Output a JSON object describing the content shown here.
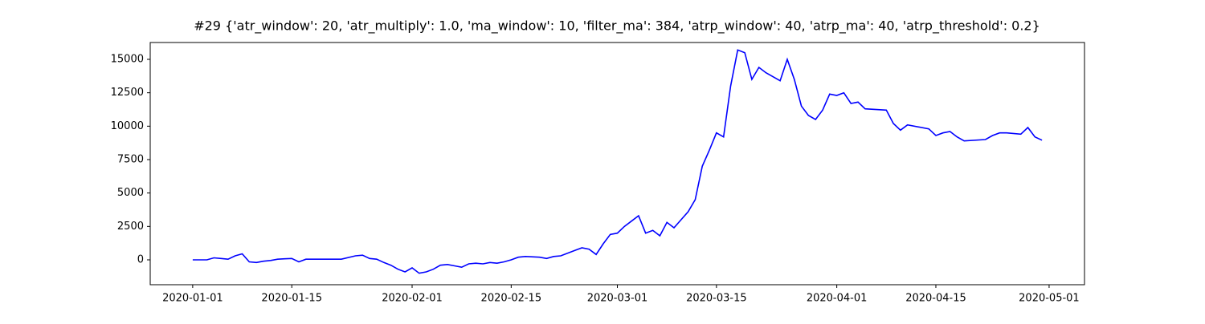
{
  "chart_data": {
    "type": "line",
    "title": "#29 {'atr_window': 20, 'atr_multiply': 1.0, 'ma_window': 10, 'filter_ma': 384, 'atrp_window': 40, 'atrp_ma': 40, 'atrp_threshold': 0.2}",
    "x": [
      "2020-01-01",
      "2020-01-03",
      "2020-01-04",
      "2020-01-05",
      "2020-01-06",
      "2020-01-07",
      "2020-01-08",
      "2020-01-09",
      "2020-01-10",
      "2020-01-11",
      "2020-01-12",
      "2020-01-13",
      "2020-01-14",
      "2020-01-15",
      "2020-01-16",
      "2020-01-17",
      "2020-01-20",
      "2020-01-22",
      "2020-01-24",
      "2020-01-25",
      "2020-01-26",
      "2020-01-27",
      "2020-01-28",
      "2020-01-29",
      "2020-01-30",
      "2020-01-31",
      "2020-02-01",
      "2020-02-02",
      "2020-02-03",
      "2020-02-04",
      "2020-02-05",
      "2020-02-06",
      "2020-02-07",
      "2020-02-08",
      "2020-02-09",
      "2020-02-10",
      "2020-02-11",
      "2020-02-12",
      "2020-02-13",
      "2020-02-14",
      "2020-02-15",
      "2020-02-16",
      "2020-02-17",
      "2020-02-19",
      "2020-02-20",
      "2020-02-21",
      "2020-02-22",
      "2020-02-24",
      "2020-02-25",
      "2020-02-26",
      "2020-02-27",
      "2020-02-28",
      "2020-02-29",
      "2020-03-01",
      "2020-03-02",
      "2020-03-03",
      "2020-03-04",
      "2020-03-05",
      "2020-03-06",
      "2020-03-07",
      "2020-03-08",
      "2020-03-09",
      "2020-03-10",
      "2020-03-11",
      "2020-03-12",
      "2020-03-13",
      "2020-03-14",
      "2020-03-15",
      "2020-03-16",
      "2020-03-17",
      "2020-03-18",
      "2020-03-19",
      "2020-03-20",
      "2020-03-21",
      "2020-03-22",
      "2020-03-23",
      "2020-03-24",
      "2020-03-25",
      "2020-03-26",
      "2020-03-27",
      "2020-03-28",
      "2020-03-29",
      "2020-03-30",
      "2020-03-31",
      "2020-04-01",
      "2020-04-02",
      "2020-04-03",
      "2020-04-04",
      "2020-04-05",
      "2020-04-08",
      "2020-04-09",
      "2020-04-10",
      "2020-04-11",
      "2020-04-14",
      "2020-04-15",
      "2020-04-16",
      "2020-04-17",
      "2020-04-18",
      "2020-04-19",
      "2020-04-22",
      "2020-04-23",
      "2020-04-24",
      "2020-04-25",
      "2020-04-27",
      "2020-04-28",
      "2020-04-29",
      "2020-04-30"
    ],
    "series": [
      {
        "color": "#0000ff",
        "values": [
          0,
          0,
          150,
          100,
          50,
          300,
          450,
          -150,
          -200,
          -100,
          -50,
          50,
          80,
          100,
          -150,
          50,
          50,
          50,
          300,
          350,
          100,
          50,
          -200,
          -400,
          -700,
          -900,
          -600,
          -1000,
          -900,
          -700,
          -400,
          -350,
          -450,
          -550,
          -300,
          -250,
          -300,
          -200,
          -250,
          -150,
          0,
          200,
          250,
          200,
          100,
          250,
          300,
          700,
          900,
          800,
          400,
          1200,
          1900,
          2000,
          2500,
          2900,
          3300,
          2000,
          2200,
          1800,
          2800,
          2400,
          3000,
          3600,
          4500,
          7000,
          8200,
          9500,
          9200,
          13000,
          15700,
          15500,
          13500,
          14400,
          14000,
          13700,
          13400,
          15000,
          13500,
          11500,
          10800,
          10500,
          11200,
          12400,
          12300,
          12500,
          11700,
          11800,
          11300,
          11200,
          10200,
          9700,
          10100,
          9800,
          9300,
          9500,
          9600,
          9200,
          8900,
          9000,
          9300,
          9500,
          9500,
          9400,
          9900,
          9200,
          8950
        ]
      }
    ],
    "xlim": [
      "2019-12-26",
      "2020-05-06"
    ],
    "xticks": [
      "2020-01-01",
      "2020-01-15",
      "2020-02-01",
      "2020-02-15",
      "2020-03-01",
      "2020-03-15",
      "2020-04-01",
      "2020-04-15",
      "2020-05-01"
    ],
    "ylim": [
      -1860,
      16260
    ],
    "yticks": [
      0,
      2500,
      5000,
      7500,
      10000,
      12500,
      15000
    ]
  }
}
